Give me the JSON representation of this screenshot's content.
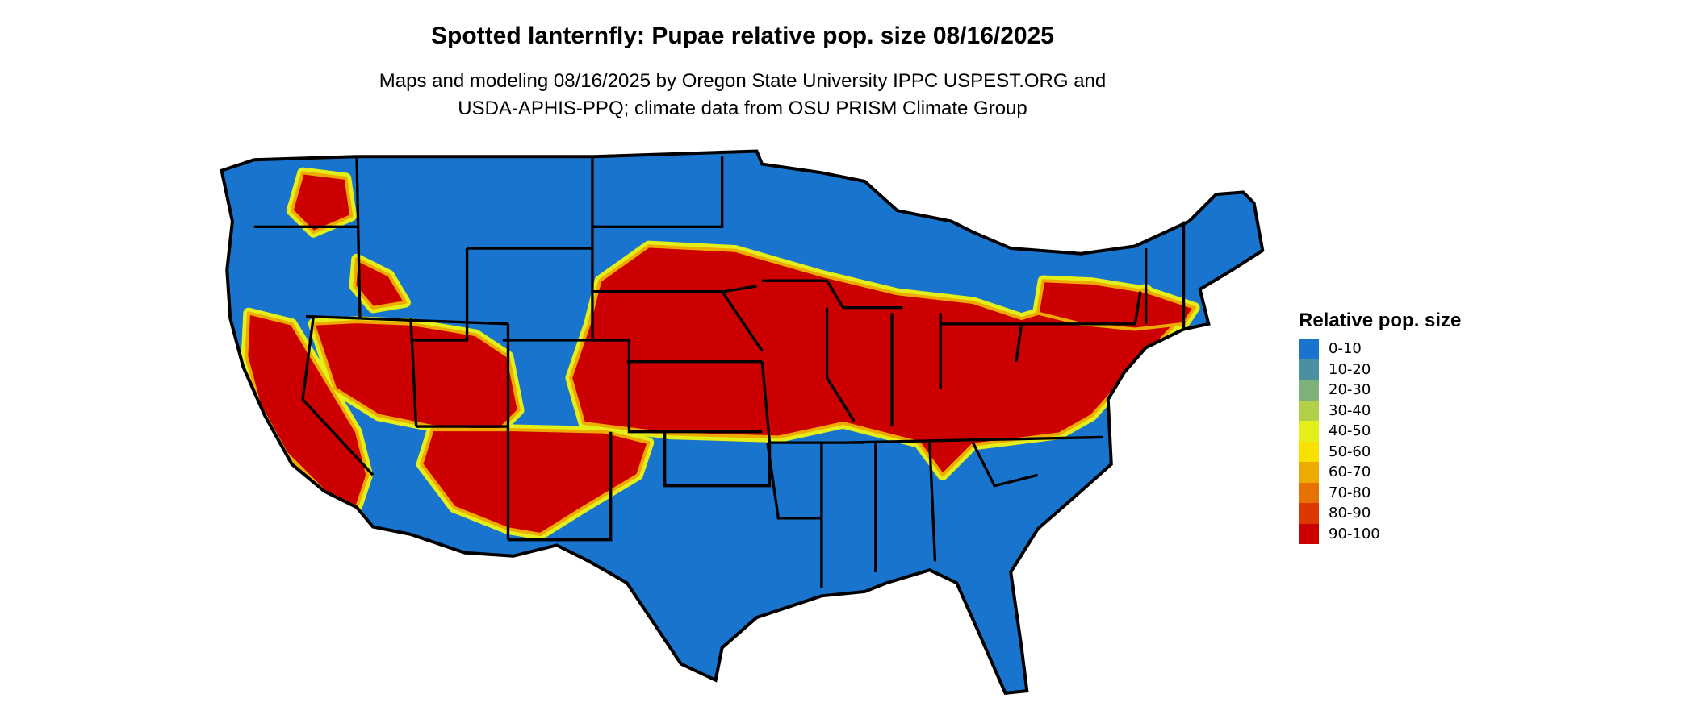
{
  "title": "Spotted lanternfly: Pupae relative pop. size 08/16/2025",
  "subtitle_line1": "Maps and modeling 08/16/2025 by Oregon State University IPPC USPEST.ORG and",
  "subtitle_line2": "USDA-APHIS-PPQ; climate data from OSU PRISM Climate Group",
  "legend": {
    "title": "Relative pop. size",
    "items": [
      {
        "label": "0-10",
        "color": "#1874CD"
      },
      {
        "label": "10-20",
        "color": "#4A90A0"
      },
      {
        "label": "20-30",
        "color": "#7EB07A"
      },
      {
        "label": "30-40",
        "color": "#B2D148"
      },
      {
        "label": "40-50",
        "color": "#E4EE18"
      },
      {
        "label": "50-60",
        "color": "#F8E000"
      },
      {
        "label": "60-70",
        "color": "#EFAA00"
      },
      {
        "label": "70-80",
        "color": "#E67200"
      },
      {
        "label": "80-90",
        "color": "#DC3800"
      },
      {
        "label": "90-100",
        "color": "#CC0000"
      }
    ]
  }
}
